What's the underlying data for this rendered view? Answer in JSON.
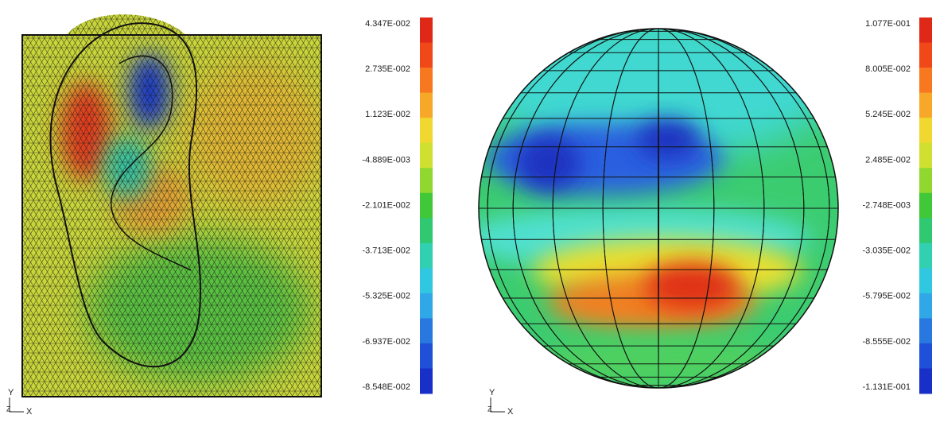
{
  "panels": [
    {
      "colorbar_labels": [
        "4.347E-002",
        "2.735E-002",
        "1.123E-002",
        "-4.889E-003",
        "-2.101E-002",
        "-3.713E-002",
        "-5.325E-002",
        "-6.937E-002",
        "-8.548E-002"
      ],
      "axes": {
        "y": "Y",
        "z": "Z",
        "x": "X"
      }
    },
    {
      "colorbar_labels": [
        "1.077E-001",
        "8.005E-002",
        "5.245E-002",
        "2.485E-002",
        "-2.748E-003",
        "-3.035E-002",
        "-5.795E-002",
        "-8.555E-002",
        "-1.131E-001"
      ],
      "axes": {
        "y": "Y",
        "z": "Z",
        "x": "X"
      }
    }
  ]
}
